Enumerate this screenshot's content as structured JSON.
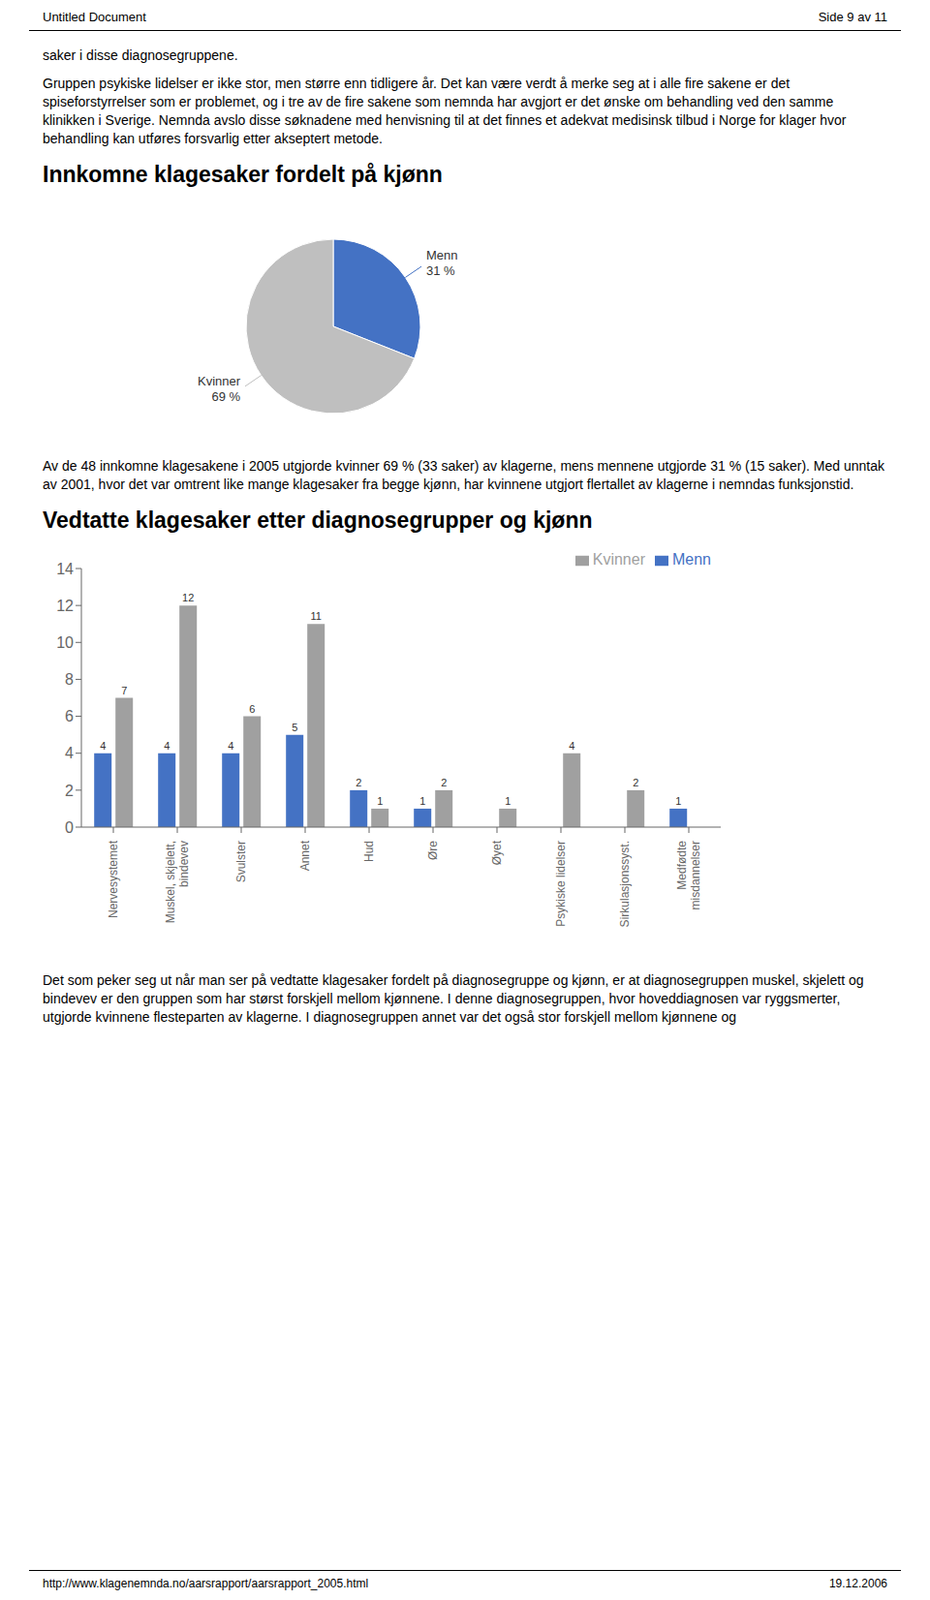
{
  "chart_data": [
    {
      "type": "pie",
      "title": "Innkomne klagesaker fordelt på kjønn",
      "categories": [
        "Menn",
        "Kvinner"
      ],
      "values": [
        31,
        69
      ],
      "value_labels": [
        "31 %",
        "69 %"
      ],
      "colors": [
        "#4472c4",
        "#bfbfbf"
      ],
      "annotations": [
        "Untitled Document",
        "Side 9 av 11",
        "saker i disse diagnosegruppene.",
        "Gruppen psykiske lidelser er ikke stor, men større enn tidligere år. Det kan være verdt å merke seg at i alle fire sakene er det spiseforstyrrelser som er problemet, og i tre av de fire sakene som nemnda har avgjort er det ønske om behandling ved den samme klinikken i Sverige. Nemnda avslo disse søknadene med henvisning til at det finnes et adekvat medisinsk tilbud i Norge for klager hvor behandling kan utføres forsvarlig etter akseptert metode.",
        "Av de 48 innkomne klagesakene i 2005 utgjorde kvinner 69 % (33 saker) av klagerne, mens mennene utgjorde 31 % (15 saker). Med unntak av 2001, hvor det var omtrent like mange klagesaker fra begge kjønn, har kvinnene utgjort flertallet av klagerne i nemndas funksjonstid."
      ]
    },
    {
      "type": "bar",
      "title": "Vedtatte klagesaker etter diagnosegrupper og kjønn",
      "categories": [
        "Nervesystemet",
        "Muskel, skjelett,\nbindevev",
        "Svulster",
        "Annet",
        "Hud",
        "Øre",
        "Øyet",
        "Psykiske lidelser",
        "Sirkulasjonssyst.",
        "Medfødte\nmisdannelser"
      ],
      "series": [
        {
          "name": "Menn",
          "color": "#4472c4",
          "values": [
            4,
            4,
            4,
            5,
            2,
            1,
            0,
            0,
            0,
            1
          ]
        },
        {
          "name": "Kvinner",
          "color": "#a0a0a0",
          "values": [
            7,
            12,
            6,
            11,
            1,
            2,
            1,
            4,
            2,
            0
          ]
        }
      ],
      "ylim": [
        0,
        14
      ],
      "yticks": [
        0,
        2,
        4,
        6,
        8,
        10,
        12,
        14
      ],
      "data_labels": true,
      "legend": "upper right",
      "grid": false,
      "annotations": [
        "Det som peker seg ut når man ser på vedtatte klagesaker fordelt på diagnosegruppe og kjønn, er at diagnosegruppen muskel, skjelett og bindevev er den gruppen som har størst forskjell mellom kjønnene. I denne diagnosegruppen, hvor hoveddiagnosen var ryggsmerter, utgjorde kvinnene flesteparten av klagerne. I diagnosegruppen annet var det også stor forskjell mellom kjønnene og",
        "http://www.klagenemnda.no/aarsrapport/aarsrapport_2005.html",
        "19.12.2006"
      ]
    }
  ]
}
